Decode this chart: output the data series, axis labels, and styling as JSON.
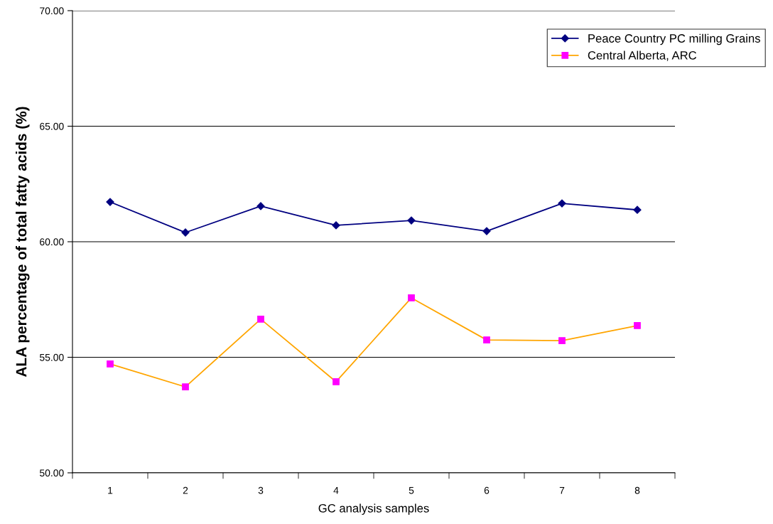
{
  "chart_data": {
    "type": "line",
    "xlabel": "GC analysis samples",
    "ylabel": "ALA percentage of total fatty acids (%)",
    "categories": [
      "1",
      "2",
      "3",
      "4",
      "5",
      "6",
      "7",
      "8"
    ],
    "series": [
      {
        "name": "Peace Country PC milling Grains",
        "color": "#000080",
        "marker": "diamond",
        "values": [
          61.72,
          60.4,
          61.54,
          60.71,
          60.92,
          60.46,
          61.66,
          61.38
        ]
      },
      {
        "name": "Central Alberta, ARC",
        "color": "#ffa500",
        "colors": [
          "#ff00ff",
          "#ff00ff",
          "#ff00ff",
          "#ff00ff",
          "#ff00ff",
          "#ff00ff",
          "#ff00ff",
          "#ff00ff"
        ],
        "marker": "square",
        "values": [
          54.71,
          53.72,
          56.65,
          53.94,
          57.57,
          55.75,
          55.72,
          56.37
        ]
      }
    ],
    "ylim": [
      50,
      70
    ],
    "yticks": [
      {
        "value": 50,
        "label": "50.00"
      },
      {
        "value": 55,
        "label": "55.00"
      },
      {
        "value": 60,
        "label": "60.00"
      },
      {
        "value": 65,
        "label": "65.00"
      },
      {
        "value": 70,
        "label": "70.00"
      }
    ],
    "grid": "y",
    "legend": "top right",
    "line_style": "solid"
  }
}
